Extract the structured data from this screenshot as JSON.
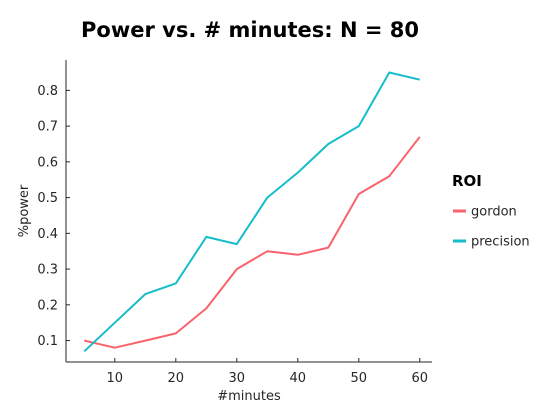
{
  "chart_data": {
    "type": "line",
    "title": "Power vs. # minutes: N = 80",
    "xlabel": "#minutes",
    "ylabel": "%power",
    "xlim": [
      2,
      62
    ],
    "ylim": [
      0.04,
      0.885
    ],
    "xticks": [
      10,
      20,
      30,
      40,
      50,
      60
    ],
    "yticks": [
      0.1,
      0.2,
      0.3,
      0.4,
      0.5,
      0.6,
      0.7,
      0.8
    ],
    "grid": false,
    "legend": {
      "title": "ROI",
      "position": "right"
    },
    "x": [
      5,
      10,
      15,
      20,
      25,
      30,
      35,
      40,
      45,
      50,
      55,
      60
    ],
    "series": [
      {
        "name": "gordon",
        "color": "#f8636d",
        "values": [
          0.1,
          0.08,
          0.1,
          0.12,
          0.19,
          0.3,
          0.35,
          0.34,
          0.36,
          0.51,
          0.56,
          0.67
        ]
      },
      {
        "name": "precision",
        "color": "#16bdca",
        "values": [
          0.07,
          0.15,
          0.23,
          0.26,
          0.39,
          0.37,
          0.5,
          0.57,
          0.65,
          0.7,
          0.85,
          0.83
        ]
      }
    ]
  }
}
